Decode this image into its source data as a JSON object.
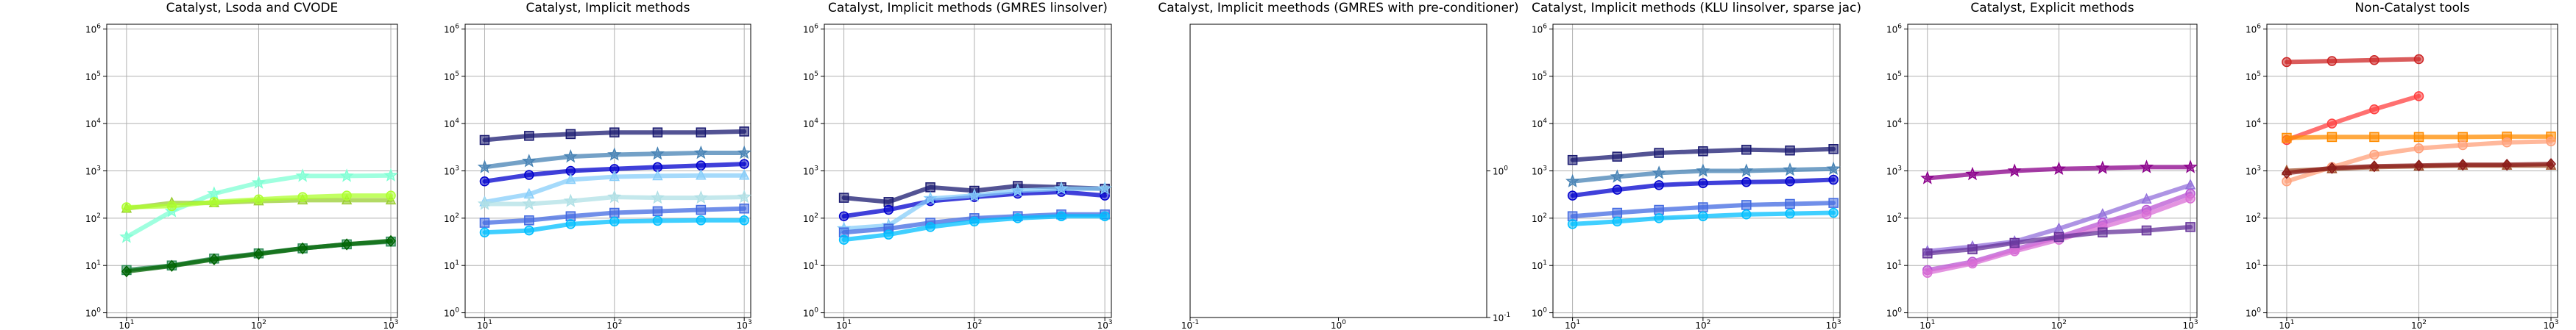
{
  "chart_data": [
    {
      "type": "line",
      "title": "Catalyst, Lsoda and CVODE",
      "xscale": "log",
      "yscale": "log",
      "xlim": [
        0.8,
        1.2
      ],
      "ylim": [
        0.8,
        1.2
      ],
      "xlim_log": [
        0.85,
        3.05
      ],
      "ylim_log": [
        -0.1,
        6.1
      ],
      "xticks": [
        1,
        2,
        3
      ],
      "yticks": [
        0,
        1,
        2,
        3,
        4,
        5,
        6
      ],
      "yticks_side": "left",
      "grid": true,
      "series": [
        {
          "color": "#7fffd4",
          "marker": "star",
          "x": [
            10,
            22,
            46,
            100,
            215,
            464,
            1000
          ],
          "y": [
            40,
            140,
            330,
            560,
            780,
            780,
            800
          ]
        },
        {
          "color": "#9acd32",
          "marker": "triangle",
          "x": [
            10,
            22,
            46,
            100,
            215,
            464,
            1000
          ],
          "y": [
            160,
            210,
            210,
            230,
            240,
            240,
            240
          ]
        },
        {
          "color": "#adff2f",
          "marker": "circle",
          "x": [
            10,
            22,
            46,
            100,
            215,
            464,
            1000
          ],
          "y": [
            170,
            180,
            220,
            250,
            280,
            300,
            300
          ]
        },
        {
          "color": "#2e8b57",
          "marker": "square",
          "x": [
            10,
            22,
            46,
            100,
            215,
            464,
            1000
          ],
          "y": [
            8,
            10,
            14,
            18,
            23,
            28,
            32
          ]
        },
        {
          "color": "#006400",
          "marker": "diamond",
          "x": [
            10,
            22,
            46,
            100,
            215,
            464,
            1000
          ],
          "y": [
            7.5,
            9.8,
            13.5,
            17.5,
            23,
            28,
            33
          ]
        }
      ]
    },
    {
      "type": "line",
      "title": "Catalyst, Implicit methods",
      "xscale": "log",
      "yscale": "log",
      "xlim_log": [
        0.85,
        3.05
      ],
      "ylim_log": [
        -0.1,
        6.1
      ],
      "xticks": [
        1,
        2,
        3
      ],
      "yticks": [
        0,
        1,
        2,
        3,
        4,
        5,
        6
      ],
      "yticks_side": "left",
      "grid": true,
      "series": [
        {
          "color": "#191970",
          "marker": "square",
          "x": [
            10,
            22,
            46,
            100,
            215,
            464,
            1000
          ],
          "y": [
            4500,
            5500,
            6000,
            6500,
            6500,
            6500,
            6800
          ]
        },
        {
          "color": "#4682b4",
          "marker": "star",
          "x": [
            10,
            22,
            46,
            100,
            215,
            464,
            1000
          ],
          "y": [
            1200,
            1600,
            2000,
            2200,
            2300,
            2400,
            2400
          ]
        },
        {
          "color": "#0000cd",
          "marker": "circle",
          "x": [
            10,
            22,
            46,
            100,
            215,
            464,
            1000
          ],
          "y": [
            600,
            820,
            1000,
            1100,
            1200,
            1300,
            1400
          ]
        },
        {
          "color": "#87cefa",
          "marker": "triangle",
          "x": [
            10,
            22,
            46,
            100,
            215,
            464,
            1000
          ],
          "y": [
            220,
            320,
            650,
            750,
            780,
            800,
            800
          ]
        },
        {
          "color": "#b0e0e6",
          "marker": "star",
          "x": [
            10,
            22,
            46,
            100,
            215,
            464,
            1000
          ],
          "y": [
            200,
            200,
            230,
            280,
            270,
            270,
            280
          ]
        },
        {
          "color": "#4169e1",
          "marker": "square",
          "x": [
            10,
            22,
            46,
            100,
            215,
            464,
            1000
          ],
          "y": [
            80,
            90,
            110,
            130,
            140,
            150,
            160
          ]
        },
        {
          "color": "#00bfff",
          "marker": "circle",
          "x": [
            10,
            22,
            46,
            100,
            215,
            464,
            1000
          ],
          "y": [
            50,
            55,
            75,
            85,
            88,
            90,
            90
          ]
        }
      ]
    },
    {
      "type": "line",
      "title": "Catalyst, Implicit methods (GMRES linsolver)",
      "xscale": "log",
      "yscale": "log",
      "xlim_log": [
        0.85,
        3.05
      ],
      "ylim_log": [
        -0.1,
        6.1
      ],
      "xticks": [
        1,
        2,
        3
      ],
      "yticks": [
        0,
        1,
        2,
        3,
        4,
        5,
        6
      ],
      "yticks_side": "left",
      "grid": true,
      "series": [
        {
          "color": "#191970",
          "marker": "square",
          "x": [
            10,
            22,
            46,
            100,
            215,
            464,
            1000
          ],
          "y": [
            270,
            220,
            450,
            380,
            480,
            450,
            420
          ]
        },
        {
          "color": "#0000cd",
          "marker": "circle",
          "x": [
            10,
            22,
            46,
            100,
            215,
            464,
            1000
          ],
          "y": [
            110,
            150,
            230,
            280,
            330,
            360,
            300
          ]
        },
        {
          "color": "#87cefa",
          "marker": "star",
          "x": [
            10,
            22,
            46,
            100,
            215,
            464,
            1000
          ],
          "y": [
            60,
            70,
            260,
            300,
            380,
            420,
            420
          ]
        },
        {
          "color": "#4169e1",
          "marker": "square",
          "x": [
            10,
            22,
            46,
            100,
            215,
            464,
            1000
          ],
          "y": [
            50,
            60,
            80,
            100,
            110,
            120,
            120
          ]
        },
        {
          "color": "#00bfff",
          "marker": "circle",
          "x": [
            10,
            22,
            46,
            100,
            215,
            464,
            1000
          ],
          "y": [
            35,
            45,
            65,
            85,
            100,
            110,
            110
          ]
        }
      ]
    },
    {
      "type": "line",
      "title": "Catalyst, Implicit meethods (GMRES with pre-conditioner)",
      "xscale": "log",
      "yscale": "log",
      "xlim_log": [
        -1,
        1
      ],
      "ylim_log": [
        -1,
        1
      ],
      "xticks": [
        -1,
        0
      ],
      "yticks": [
        -1,
        0
      ],
      "yticks_side": "right",
      "grid": false,
      "series": []
    },
    {
      "type": "line",
      "title": "Catalyst, Implicit methods (KLU linsolver, sparse jac)",
      "xscale": "log",
      "yscale": "log",
      "xlim_log": [
        0.85,
        3.05
      ],
      "ylim_log": [
        -0.1,
        6.1
      ],
      "xticks": [
        1,
        2,
        3
      ],
      "yticks": [
        0,
        1,
        2,
        3,
        4,
        5,
        6
      ],
      "yticks_side": "left",
      "grid": true,
      "series": [
        {
          "color": "#191970",
          "marker": "square",
          "x": [
            10,
            22,
            46,
            100,
            215,
            464,
            1000
          ],
          "y": [
            1700,
            2000,
            2400,
            2600,
            2800,
            2700,
            2900
          ]
        },
        {
          "color": "#4682b4",
          "marker": "star",
          "x": [
            10,
            22,
            46,
            100,
            215,
            464,
            1000
          ],
          "y": [
            600,
            750,
            900,
            1000,
            1000,
            1050,
            1100
          ]
        },
        {
          "color": "#0000cd",
          "marker": "circle",
          "x": [
            10,
            22,
            46,
            100,
            215,
            464,
            1000
          ],
          "y": [
            300,
            400,
            500,
            550,
            580,
            600,
            650
          ]
        },
        {
          "color": "#4169e1",
          "marker": "square",
          "x": [
            10,
            22,
            46,
            100,
            215,
            464,
            1000
          ],
          "y": [
            110,
            130,
            150,
            170,
            190,
            200,
            210
          ]
        },
        {
          "color": "#00bfff",
          "marker": "circle",
          "x": [
            10,
            22,
            46,
            100,
            215,
            464,
            1000
          ],
          "y": [
            75,
            85,
            100,
            110,
            120,
            125,
            130
          ]
        }
      ]
    },
    {
      "type": "line",
      "title": "Catalyst, Explicit methods",
      "xscale": "log",
      "yscale": "log",
      "xlim_log": [
        0.85,
        3.05
      ],
      "ylim_log": [
        -0.1,
        6.1
      ],
      "xticks": [
        1,
        2,
        3
      ],
      "yticks": [
        0,
        1,
        2,
        3,
        4,
        5,
        6
      ],
      "yticks_side": "left",
      "grid": true,
      "series": [
        {
          "color": "#8b008b",
          "marker": "star",
          "x": [
            10,
            22,
            46,
            100,
            215,
            464,
            1000
          ],
          "y": [
            700,
            850,
            1000,
            1100,
            1150,
            1200,
            1200
          ]
        },
        {
          "color": "#9370db",
          "marker": "triangle",
          "x": [
            10,
            22,
            46,
            100,
            215,
            464,
            1000
          ],
          "y": [
            20,
            25,
            32,
            60,
            120,
            250,
            500
          ]
        },
        {
          "color": "#ba55d3",
          "marker": "circle",
          "x": [
            10,
            22,
            46,
            100,
            215,
            464,
            1000
          ],
          "y": [
            8,
            12,
            22,
            40,
            80,
            150,
            330
          ]
        },
        {
          "color": "#da70d6",
          "marker": "circle",
          "x": [
            10,
            22,
            46,
            100,
            215,
            464,
            1000
          ],
          "y": [
            7,
            11,
            20,
            35,
            65,
            120,
            260
          ]
        },
        {
          "color": "#663399",
          "marker": "square",
          "x": [
            10,
            22,
            46,
            100,
            215,
            464,
            1000
          ],
          "y": [
            18,
            22,
            30,
            40,
            50,
            55,
            65
          ]
        }
      ]
    },
    {
      "type": "line",
      "title": "Non-Catalyst tools",
      "xscale": "log",
      "yscale": "log",
      "xlim_log": [
        0.85,
        3.05
      ],
      "ylim_log": [
        -0.1,
        6.1
      ],
      "xticks": [
        1,
        2,
        3
      ],
      "yticks": [
        0,
        1,
        2,
        3,
        4,
        5,
        6
      ],
      "yticks_side": "left",
      "grid": true,
      "series": [
        {
          "color": "#cd2626",
          "marker": "circle",
          "x": [
            10,
            22,
            46,
            100
          ],
          "y": [
            200000,
            210000,
            220000,
            230000
          ]
        },
        {
          "color": "#ff4040",
          "marker": "circle",
          "x": [
            10,
            22,
            46,
            100
          ],
          "y": [
            4500,
            10000,
            20000,
            38000
          ]
        },
        {
          "color": "#ff8c00",
          "marker": "square",
          "x": [
            10,
            22,
            46,
            100,
            215,
            464,
            1000
          ],
          "y": [
            5000,
            5200,
            5200,
            5200,
            5200,
            5300,
            5300
          ]
        },
        {
          "color": "#ffa07a",
          "marker": "circle",
          "x": [
            10,
            22,
            46,
            100,
            215,
            464,
            1000
          ],
          "y": [
            600,
            1200,
            2200,
            3000,
            3500,
            4000,
            4200
          ]
        },
        {
          "color": "#a0522d",
          "marker": "triangle",
          "x": [
            10,
            22,
            46,
            100,
            215,
            464,
            1000
          ],
          "y": [
            1000,
            1100,
            1200,
            1250,
            1300,
            1300,
            1300
          ]
        },
        {
          "color": "#8b1a1a",
          "marker": "diamond",
          "x": [
            10,
            22,
            46,
            100,
            215,
            464,
            1000
          ],
          "y": [
            900,
            1150,
            1250,
            1300,
            1350,
            1350,
            1400
          ]
        }
      ]
    }
  ]
}
